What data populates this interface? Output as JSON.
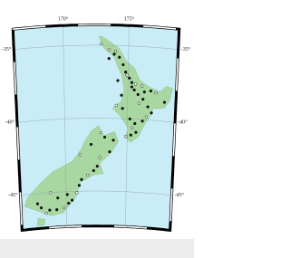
{
  "map": {
    "lon_ticks": [
      {
        "value": 170,
        "label": "170°"
      },
      {
        "value": 175,
        "label": "175°"
      }
    ],
    "lat_ticks": [
      {
        "value": -35,
        "label": "-35°"
      },
      {
        "value": -40,
        "label": "-40°"
      },
      {
        "value": -45,
        "label": "-45°"
      }
    ],
    "points": [
      [
        173.5,
        -35.3
      ],
      [
        173.9,
        -35.6
      ],
      [
        174.3,
        -35.8
      ],
      [
        174.0,
        -35.4
      ],
      [
        174.6,
        -36.3
      ],
      [
        174.8,
        -36.8
      ],
      [
        174.9,
        -37.0
      ],
      [
        175.1,
        -37.2
      ],
      [
        175.3,
        -37.5
      ],
      [
        175.6,
        -37.6
      ],
      [
        175.3,
        -37.8
      ],
      [
        175.5,
        -38.0
      ],
      [
        176.1,
        -37.7
      ],
      [
        176.3,
        -38.1
      ],
      [
        176.8,
        -38.0
      ],
      [
        177.2,
        -38.1
      ],
      [
        175.8,
        -38.3
      ],
      [
        176.2,
        -38.6
      ],
      [
        175.9,
        -38.9
      ],
      [
        176.6,
        -39.1
      ],
      [
        176.9,
        -39.5
      ],
      [
        176.5,
        -39.8
      ],
      [
        176.2,
        -40.1
      ],
      [
        175.6,
        -40.3
      ],
      [
        175.4,
        -40.6
      ],
      [
        175.7,
        -40.9
      ],
      [
        175.3,
        -41.1
      ],
      [
        174.9,
        -41.2
      ],
      [
        175.2,
        -40.0
      ],
      [
        174.6,
        -39.3
      ],
      [
        174.1,
        -39.1
      ],
      [
        177.9,
        -38.7
      ],
      [
        173.2,
        -41.3
      ],
      [
        172.9,
        -41.0
      ],
      [
        173.9,
        -41.5
      ],
      [
        173.6,
        -42.3
      ],
      [
        172.8,
        -42.7
      ],
      [
        172.6,
        -43.3
      ],
      [
        172.3,
        -43.6
      ],
      [
        171.8,
        -43.9
      ],
      [
        171.3,
        -44.2
      ],
      [
        171.1,
        -44.6
      ],
      [
        170.9,
        -45.1
      ],
      [
        170.5,
        -45.6
      ],
      [
        170.2,
        -45.8
      ],
      [
        169.8,
        -46.1
      ],
      [
        169.2,
        -46.2
      ],
      [
        168.6,
        -46.2
      ],
      [
        168.3,
        -46.4
      ],
      [
        167.9,
        -46.0
      ],
      [
        167.6,
        -45.7
      ],
      [
        168.7,
        -45.0
      ],
      [
        169.3,
        -45.4
      ],
      [
        170.1,
        -45.2
      ],
      [
        171.2,
        -42.5
      ],
      [
        172.1,
        -41.8
      ],
      [
        173.5,
        -35.9
      ],
      [
        172.9,
        -34.9
      ],
      [
        174.2,
        -37.4
      ],
      [
        174.5,
        -38.4
      ]
    ]
  }
}
